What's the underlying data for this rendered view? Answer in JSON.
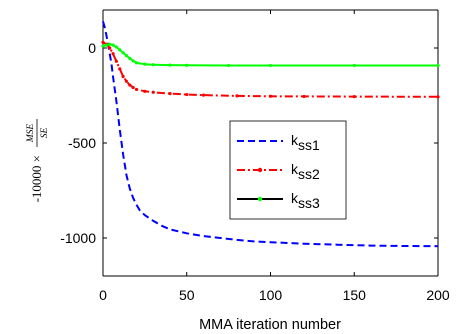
{
  "chart_data": {
    "type": "line",
    "xlabel": "MMA iteration number",
    "ylabel": {
      "prefix": "-10000 ×",
      "numerator": "MSE",
      "denominator": "SE"
    },
    "xlim": [
      0,
      200
    ],
    "ylim": [
      -1200,
      200
    ],
    "xticks": [
      0,
      50,
      100,
      150,
      200
    ],
    "xtick_labels": [
      "0",
      "50",
      "100",
      "150",
      "200"
    ],
    "yticks": [
      -1000,
      -500,
      0
    ],
    "ytick_labels": [
      "-1000",
      "-500",
      "0"
    ],
    "grid": false,
    "legend_position": "center-right",
    "series": [
      {
        "name": "k_ss1",
        "label_main": "k",
        "label_sub": "ss1",
        "color": "#0000ff",
        "style": "dashed",
        "marker": "none",
        "x": [
          0,
          1,
          2,
          3,
          4,
          5,
          6,
          8,
          10,
          12,
          14,
          16,
          18,
          20,
          22,
          25,
          30,
          35,
          40,
          50,
          60,
          70,
          80,
          90,
          100,
          120,
          140,
          160,
          180,
          200
        ],
        "y": [
          140,
          110,
          70,
          20,
          -30,
          -80,
          -150,
          -280,
          -430,
          -560,
          -670,
          -740,
          -790,
          -825,
          -855,
          -880,
          -910,
          -935,
          -955,
          -975,
          -990,
          -1000,
          -1010,
          -1018,
          -1022,
          -1030,
          -1035,
          -1040,
          -1042,
          -1043
        ]
      },
      {
        "name": "k_ss2",
        "label_main": "k",
        "label_sub": "ss2",
        "color": "#ff0000",
        "style": "dashdot",
        "marker": "dot",
        "x": [
          0,
          2,
          4,
          6,
          8,
          10,
          12,
          14,
          16,
          18,
          20,
          25,
          30,
          40,
          50,
          60,
          80,
          100,
          120,
          150,
          200
        ],
        "y": [
          30,
          20,
          0,
          -30,
          -70,
          -110,
          -150,
          -175,
          -195,
          -208,
          -218,
          -228,
          -233,
          -240,
          -245,
          -248,
          -252,
          -254,
          -255,
          -256,
          -257
        ]
      },
      {
        "name": "k_ss3",
        "label_main": "k",
        "label_sub": "ss3",
        "color": "#00ff00",
        "style": "solid",
        "marker": "dot",
        "x": [
          0,
          2,
          4,
          6,
          8,
          10,
          12,
          14,
          16,
          18,
          20,
          25,
          30,
          40,
          50,
          75,
          100,
          150,
          200
        ],
        "y": [
          10,
          15,
          20,
          15,
          5,
          -10,
          -25,
          -40,
          -55,
          -68,
          -78,
          -85,
          -88,
          -90,
          -91,
          -92,
          -92,
          -92,
          -92
        ]
      }
    ]
  }
}
